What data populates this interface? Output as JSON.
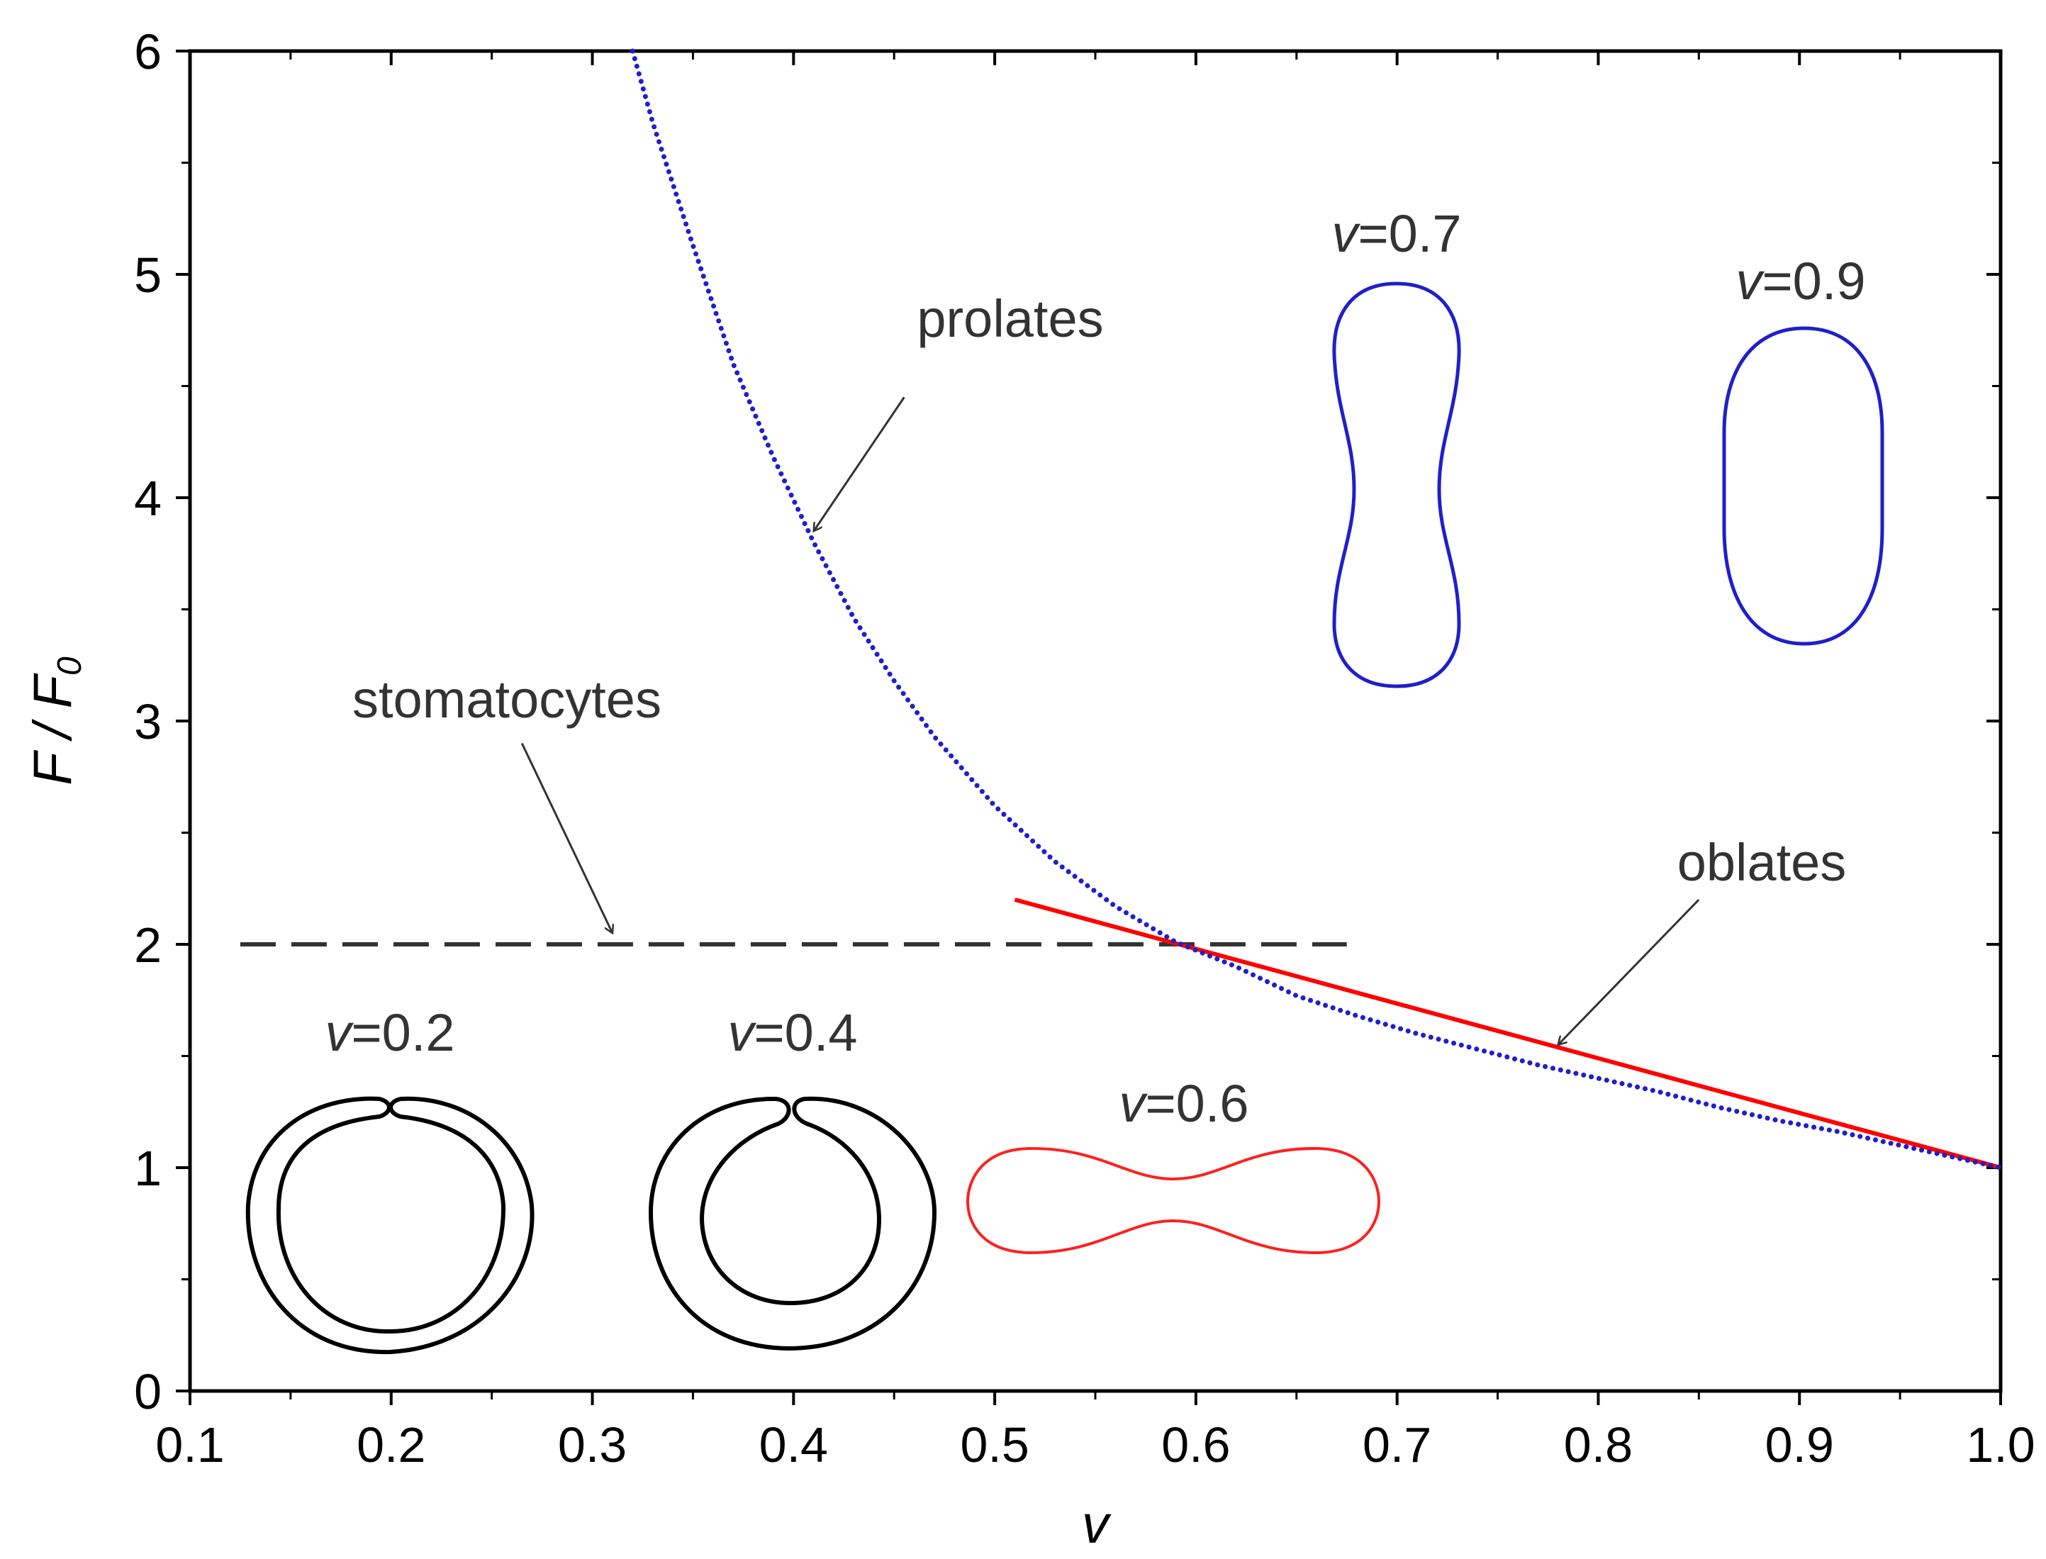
{
  "chart_data": {
    "type": "line",
    "title": "",
    "xlabel": "v",
    "ylabel_main": "F / F",
    "ylabel_sub": "0",
    "xlim": [
      0.1,
      1.0
    ],
    "ylim": [
      0,
      6
    ],
    "xticks": [
      0.1,
      0.2,
      0.3,
      0.4,
      0.5,
      0.6,
      0.7,
      0.8,
      0.9,
      1.0
    ],
    "xtick_labels": [
      "0.1",
      "0.2",
      "0.3",
      "0.4",
      "0.5",
      "0.6",
      "0.7",
      "0.8",
      "0.9",
      "1.0"
    ],
    "yticks": [
      0,
      1,
      2,
      3,
      4,
      5,
      6
    ],
    "ytick_labels": [
      "0",
      "1",
      "2",
      "3",
      "4",
      "5",
      "6"
    ],
    "series": [
      {
        "name": "prolates",
        "style": "dotted",
        "color": "#1f1fcc",
        "x": [
          0.32,
          0.33,
          0.35,
          0.37,
          0.39,
          0.41,
          0.43,
          0.45,
          0.47,
          0.5,
          0.53,
          0.56,
          0.59,
          0.62,
          0.65,
          0.68,
          0.71,
          0.74,
          0.77,
          0.8,
          0.83,
          0.86,
          0.89,
          0.92,
          0.95,
          0.98,
          1.0
        ],
        "y": [
          6.0,
          5.68,
          5.13,
          4.6,
          4.18,
          3.8,
          3.46,
          3.18,
          2.93,
          2.62,
          2.37,
          2.17,
          2.01,
          1.9,
          1.77,
          1.68,
          1.6,
          1.53,
          1.46,
          1.4,
          1.34,
          1.27,
          1.21,
          1.16,
          1.1,
          1.04,
          1.0
        ]
      },
      {
        "name": "oblates",
        "style": "solid",
        "color": "#ff0000",
        "x": [
          0.51,
          1.0
        ],
        "y": [
          2.2,
          1.0
        ]
      },
      {
        "name": "stomatocytes",
        "style": "dashed",
        "color": "#333333",
        "x": [
          0.125,
          0.675
        ],
        "y": [
          2.0,
          2.0
        ]
      }
    ],
    "annotations": [
      {
        "text": "prolates",
        "label_x": 0.455,
        "label_y": 4.8,
        "arrow_to_x": 0.41,
        "arrow_to_y": 3.85
      },
      {
        "text": "stomatocytes",
        "label_x": 0.265,
        "label_y": 3.05,
        "arrow_to_x": 0.31,
        "arrow_to_y": 2.05
      },
      {
        "text": "oblates",
        "label_x": 0.85,
        "label_y": 2.35,
        "arrow_to_x": 0.78,
        "arrow_to_y": 1.55
      }
    ],
    "inset_shapes": [
      {
        "label_prefix": "v",
        "label_value": "=0.2",
        "color": "#000000"
      },
      {
        "label_prefix": "v",
        "label_value": "=0.4",
        "color": "#000000"
      },
      {
        "label_prefix": "v",
        "label_value": "=0.6",
        "color": "#ff0000"
      },
      {
        "label_prefix": "v",
        "label_value": "=0.7",
        "color": "#1f1fcc"
      },
      {
        "label_prefix": "v",
        "label_value": "=0.9",
        "color": "#1f1fcc"
      }
    ]
  }
}
